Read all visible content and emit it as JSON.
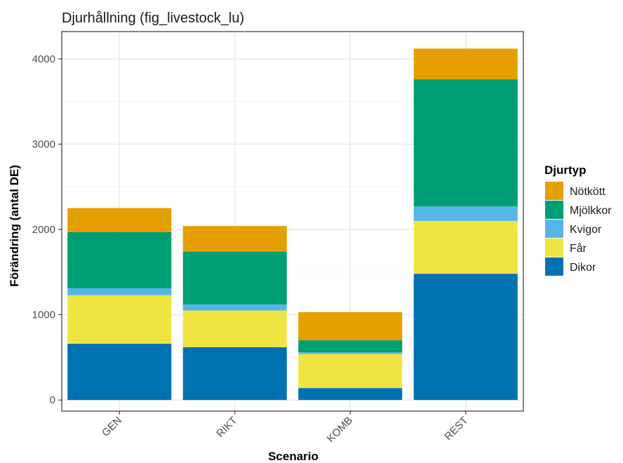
{
  "chart_data": {
    "type": "bar",
    "stacked": true,
    "title": "Djurhållning (fig_livestock_lu)",
    "xlabel": "Scenario",
    "ylabel": "Förändring (antal DE)",
    "categories": [
      "GEN",
      "RIKT",
      "KOMB",
      "REST"
    ],
    "yticks": [
      0,
      1000,
      2000,
      3000,
      4000
    ],
    "ylim": [
      -130,
      4320
    ],
    "grid": true,
    "legend": {
      "title": "Djurtyp",
      "position": "right"
    },
    "series": [
      {
        "name": "Dikor",
        "color": "#0072B2",
        "values": [
          660,
          620,
          140,
          1480
        ]
      },
      {
        "name": "Får",
        "color": "#F0E442",
        "values": [
          570,
          430,
          400,
          620
        ]
      },
      {
        "name": "Kvigor",
        "color": "#56B4E9",
        "values": [
          80,
          70,
          20,
          170
        ]
      },
      {
        "name": "Mjölkkor",
        "color": "#009E73",
        "values": [
          660,
          620,
          140,
          1490
        ]
      },
      {
        "name": "Nötkött",
        "color": "#E69F00",
        "values": [
          280,
          300,
          330,
          360
        ]
      }
    ],
    "legend_order": [
      "Nötkött",
      "Mjölkkor",
      "Kvigor",
      "Får",
      "Dikor"
    ]
  }
}
